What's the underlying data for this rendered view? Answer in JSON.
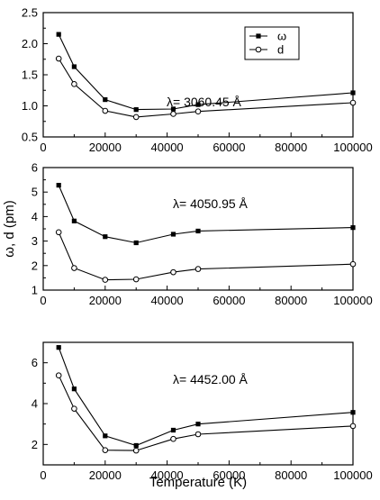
{
  "chart_data": [
    {
      "type": "line",
      "title": "",
      "xlabel": "",
      "ylabel": "",
      "annotation": "λ= 3060.45 Å",
      "xlim": [
        0,
        100000
      ],
      "ylim": [
        0.5,
        2.5
      ],
      "x_ticks": [
        "0",
        "20000",
        "40000",
        "60000",
        "80000",
        "100000"
      ],
      "y_ticks": [
        "0.5",
        "1.0",
        "1.5",
        "2.0",
        "2.5"
      ],
      "x": [
        5000,
        10000,
        20000,
        30000,
        42000,
        50000,
        100000
      ],
      "series": [
        {
          "name": "ω",
          "marker": "square-filled",
          "values": [
            2.15,
            1.63,
            1.1,
            0.94,
            0.95,
            1.02,
            1.21
          ]
        },
        {
          "name": "d",
          "marker": "circle-open",
          "values": [
            1.76,
            1.35,
            0.92,
            0.82,
            0.87,
            0.91,
            1.05
          ]
        }
      ],
      "legend": {
        "position": "top-right"
      }
    },
    {
      "type": "line",
      "title": "",
      "xlabel": "",
      "ylabel": "ω, d (pm)",
      "annotation": "λ= 4050.95 Å",
      "xlim": [
        0,
        100000
      ],
      "ylim": [
        1,
        6
      ],
      "x_ticks": [
        "0",
        "20000",
        "40000",
        "60000",
        "80000",
        "100000"
      ],
      "y_ticks": [
        "1",
        "2",
        "3",
        "4",
        "5",
        "6"
      ],
      "x": [
        5000,
        10000,
        20000,
        30000,
        42000,
        50000,
        100000
      ],
      "series": [
        {
          "name": "ω",
          "marker": "square-filled",
          "values": [
            5.28,
            3.82,
            3.18,
            2.93,
            3.28,
            3.41,
            3.55
          ]
        },
        {
          "name": "d",
          "marker": "circle-open",
          "values": [
            3.36,
            1.9,
            1.42,
            1.44,
            1.73,
            1.86,
            2.06
          ]
        }
      ]
    },
    {
      "type": "line",
      "title": "",
      "xlabel": "Temperature (K)",
      "ylabel": "",
      "annotation": "λ= 4452.00 Å",
      "xlim": [
        0,
        100000
      ],
      "ylim": [
        1,
        7
      ],
      "x_ticks": [
        "0",
        "20000",
        "40000",
        "60000",
        "80000",
        "100000"
      ],
      "y_ticks": [
        "2",
        "4",
        "6"
      ],
      "x": [
        5000,
        10000,
        20000,
        30000,
        42000,
        50000,
        100000
      ],
      "series": [
        {
          "name": "ω",
          "marker": "square-filled",
          "values": [
            6.75,
            4.72,
            2.42,
            1.95,
            2.7,
            3.0,
            3.57
          ]
        },
        {
          "name": "d",
          "marker": "circle-open",
          "values": [
            5.38,
            3.75,
            1.72,
            1.7,
            2.27,
            2.5,
            2.9
          ]
        }
      ]
    }
  ]
}
